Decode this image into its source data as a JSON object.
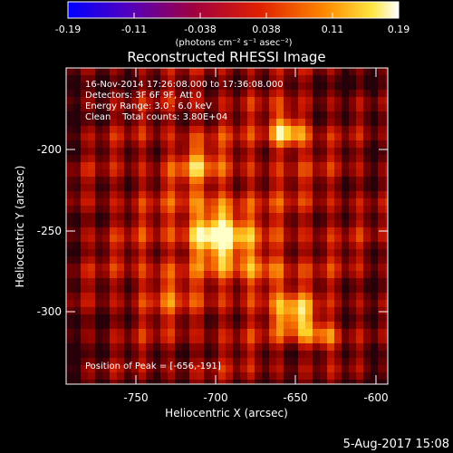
{
  "colorbar": {
    "ticks": [
      "-0.19",
      "-0.11",
      "-0.038",
      "0.038",
      "0.11",
      "0.19"
    ],
    "units_label": "(photons cm⁻² s⁻¹ asec⁻²)",
    "range": [
      -0.19,
      0.19
    ]
  },
  "title": "Reconstructed RHESSI Image",
  "info_lines": [
    "16-Nov-2014 17:26:08.000 to 17:36:08.000",
    "Detectors: 3F 6F 9F, Att 0",
    "Energy Range: 3.0 - 6.0 keV",
    "Clean    Total counts: 3.80E+04"
  ],
  "peak_label": "Position of Peak = [-656,-191]",
  "axes": {
    "xlabel": "Heliocentric X (arcsec)",
    "ylabel": "Heliocentric Y (arcsec)",
    "xticks": [
      "-750",
      "-700",
      "-650",
      "-600"
    ],
    "yticks": [
      "-200",
      "-250",
      "-300"
    ],
    "xrange": [
      -785,
      -595
    ],
    "yrange": [
      -345,
      -157
    ]
  },
  "timestamp": "5-Aug-2017 15:08",
  "colors": {
    "background": "#000000",
    "foreground": "#ffffff",
    "colormap_low": "#0000ff",
    "colormap_mid": "#d02000",
    "colormap_high": "#ffffff"
  }
}
